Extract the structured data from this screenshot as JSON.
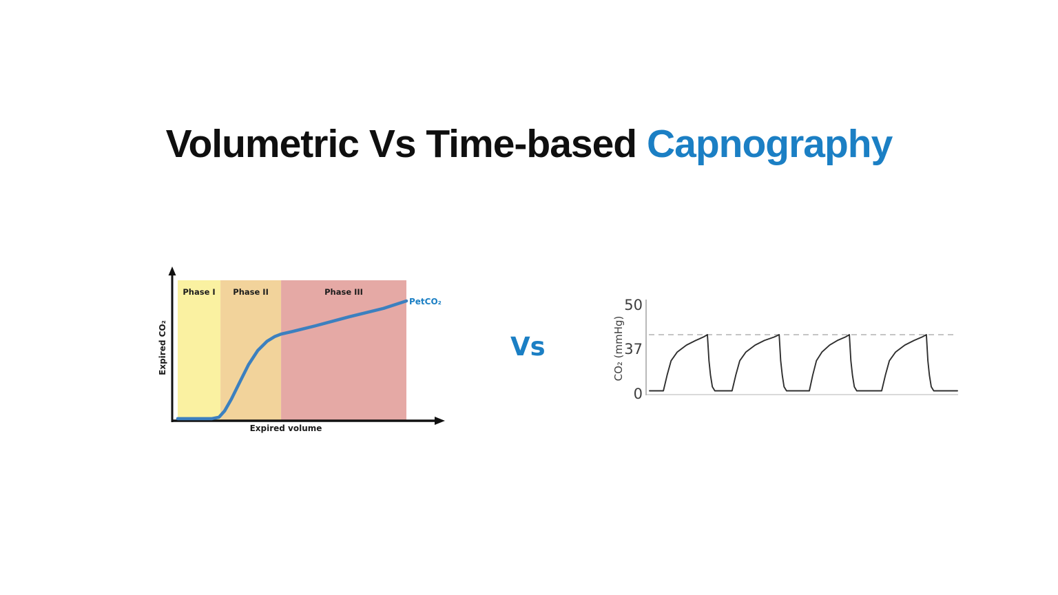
{
  "title": {
    "black_part": "Volumetric Vs Time-based",
    "blue_part": "Capnography",
    "accent_color": "#1B7FC4"
  },
  "vs_label": "Vs",
  "chart_data": [
    {
      "name": "volumetric-capnogram",
      "type": "area",
      "xlabel": "Expired volume",
      "ylabel": "Expired CO₂",
      "series_label": "PetCO₂",
      "line_color": "#3C80BF",
      "axis_color": "#111111",
      "phases": [
        {
          "label": "Phase I",
          "color": "#FAF1A1",
          "x0": 0.0,
          "x1": 0.187
        },
        {
          "label": "Phase II",
          "color": "#F2D39B",
          "x0": 0.187,
          "x1": 0.452
        },
        {
          "label": "Phase III",
          "color": "#E5A9A5",
          "x0": 0.452,
          "x1": 1.0
        }
      ],
      "curve_points": [
        [
          0.0,
          0.015
        ],
        [
          0.15,
          0.015
        ],
        [
          0.18,
          0.025
        ],
        [
          0.205,
          0.07
        ],
        [
          0.235,
          0.155
        ],
        [
          0.27,
          0.27
        ],
        [
          0.31,
          0.4
        ],
        [
          0.35,
          0.5
        ],
        [
          0.39,
          0.565
        ],
        [
          0.425,
          0.6
        ],
        [
          0.452,
          0.617
        ],
        [
          0.5,
          0.635
        ],
        [
          0.6,
          0.675
        ],
        [
          0.75,
          0.74
        ],
        [
          0.9,
          0.8
        ],
        [
          1.0,
          0.853
        ]
      ]
    },
    {
      "name": "time-based-capnogram",
      "type": "line",
      "ylabel": "CO₂ (mmHg)",
      "yticks": [
        "50",
        "37",
        "0"
      ],
      "ytick_values": [
        50,
        37,
        0
      ],
      "baseline_mmHg": 0,
      "plateau_peak_mmHg": 40,
      "reference_line_mmHg": 40,
      "breath_count": 4,
      "line_color": "#2E2E2E",
      "dashed_color": "#C4C4C4",
      "axis_color": "#9A9A9A",
      "path_points": [
        [
          0.0,
          0.03
        ],
        [
          0.045,
          0.03
        ],
        [
          0.057,
          0.3
        ],
        [
          0.07,
          0.55
        ],
        [
          0.09,
          0.7
        ],
        [
          0.12,
          0.82
        ],
        [
          0.15,
          0.9
        ],
        [
          0.175,
          0.96
        ],
        [
          0.188,
          1.0
        ],
        [
          0.193,
          0.55
        ],
        [
          0.198,
          0.3
        ],
        [
          0.204,
          0.1
        ],
        [
          0.212,
          0.03
        ],
        [
          0.268,
          0.03
        ],
        [
          0.28,
          0.3
        ],
        [
          0.293,
          0.55
        ],
        [
          0.313,
          0.7
        ],
        [
          0.343,
          0.82
        ],
        [
          0.373,
          0.9
        ],
        [
          0.405,
          0.96
        ],
        [
          0.421,
          1.0
        ],
        [
          0.426,
          0.55
        ],
        [
          0.431,
          0.3
        ],
        [
          0.437,
          0.1
        ],
        [
          0.445,
          0.03
        ],
        [
          0.519,
          0.03
        ],
        [
          0.53,
          0.3
        ],
        [
          0.542,
          0.55
        ],
        [
          0.56,
          0.7
        ],
        [
          0.585,
          0.82
        ],
        [
          0.61,
          0.9
        ],
        [
          0.636,
          0.96
        ],
        [
          0.649,
          1.0
        ],
        [
          0.654,
          0.55
        ],
        [
          0.659,
          0.3
        ],
        [
          0.665,
          0.1
        ],
        [
          0.673,
          0.03
        ],
        [
          0.754,
          0.03
        ],
        [
          0.766,
          0.3
        ],
        [
          0.779,
          0.55
        ],
        [
          0.799,
          0.7
        ],
        [
          0.829,
          0.82
        ],
        [
          0.859,
          0.9
        ],
        [
          0.885,
          0.96
        ],
        [
          0.899,
          1.0
        ],
        [
          0.904,
          0.55
        ],
        [
          0.909,
          0.3
        ],
        [
          0.915,
          0.1
        ],
        [
          0.923,
          0.03
        ],
        [
          1.0,
          0.03
        ]
      ]
    }
  ]
}
